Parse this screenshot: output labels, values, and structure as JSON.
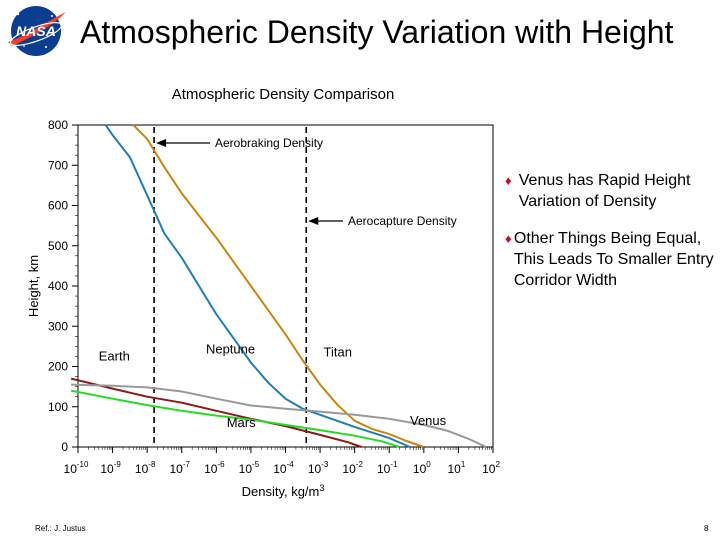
{
  "slide": {
    "title": "Atmospheric Density Variation with Height",
    "logo_text": "NASA",
    "footer_ref": "Ref.: J. Justus",
    "page_number": "8"
  },
  "bullets": [
    {
      "text": "Venus has Rapid Height Variation of Density"
    },
    {
      "text": "Other Things Being Equal, This Leads To Smaller Entry Corridor Width"
    }
  ],
  "colors": {
    "earth": "#8b1a1a",
    "mars": "#22dd22",
    "neptune": "#1f7fb5",
    "titan": "#c8870a",
    "venus": "#999999",
    "bullet": "#c8102e",
    "logo_blue": "#0b3d91",
    "logo_red": "#fc3d21"
  },
  "chart_data": {
    "type": "line",
    "title": "Atmospheric Density Comparison",
    "xlabel_base": "Density, kg/m",
    "xlabel_exp": "3",
    "ylabel": "Height, km",
    "xscale": "log",
    "x_exp_range": [
      -10,
      2
    ],
    "ylim": [
      0,
      800
    ],
    "x_tick_exponents": [
      -10,
      -9,
      -8,
      -7,
      -6,
      -5,
      -4,
      -3,
      -2,
      -1,
      0,
      1,
      2
    ],
    "y_ticks": [
      0,
      100,
      200,
      300,
      400,
      500,
      600,
      700,
      800
    ],
    "reference_lines": [
      {
        "name": "Aerobraking Density",
        "x_exp": -7.8
      },
      {
        "name": "Aerocapture Density",
        "x_exp": -3.4
      }
    ],
    "series": [
      {
        "name": "Earth",
        "label_pos": [
          -9.4,
          215
        ],
        "points": [
          [
            -10.2,
            170
          ],
          [
            -9,
            145
          ],
          [
            -8,
            125
          ],
          [
            -7,
            110
          ],
          [
            -6,
            90
          ],
          [
            -5,
            70
          ],
          [
            -4,
            52
          ],
          [
            -3,
            30
          ],
          [
            -2.2,
            12
          ],
          [
            -1.8,
            0
          ]
        ]
      },
      {
        "name": "Mars",
        "label_pos": [
          -5.7,
          50
        ],
        "points": [
          [
            -10.2,
            140
          ],
          [
            -9,
            120
          ],
          [
            -8,
            104
          ],
          [
            -7,
            90
          ],
          [
            -6,
            78
          ],
          [
            -5,
            68
          ],
          [
            -4,
            55
          ],
          [
            -3,
            42
          ],
          [
            -2,
            28
          ],
          [
            -1.2,
            14
          ],
          [
            -0.7,
            0
          ]
        ]
      },
      {
        "name": "Neptune",
        "label_pos": [
          -6.3,
          232
        ],
        "points": [
          [
            -9.2,
            800
          ],
          [
            -9,
            775
          ],
          [
            -8.5,
            720
          ],
          [
            -8,
            625
          ],
          [
            -7.5,
            530
          ],
          [
            -7,
            470
          ],
          [
            -6.5,
            400
          ],
          [
            -6,
            330
          ],
          [
            -5.5,
            270
          ],
          [
            -5,
            210
          ],
          [
            -4.5,
            160
          ],
          [
            -4,
            120
          ],
          [
            -3.5,
            95
          ],
          [
            -3,
            80
          ],
          [
            -2,
            50
          ],
          [
            -1,
            22
          ],
          [
            -0.4,
            0
          ]
        ]
      },
      {
        "name": "Titan",
        "label_pos": [
          -2.9,
          225
        ],
        "points": [
          [
            -8.4,
            800
          ],
          [
            -8,
            765
          ],
          [
            -7.5,
            695
          ],
          [
            -7,
            630
          ],
          [
            -6.5,
            575
          ],
          [
            -6,
            520
          ],
          [
            -5.5,
            460
          ],
          [
            -5,
            400
          ],
          [
            -4.5,
            340
          ],
          [
            -4,
            280
          ],
          [
            -3.5,
            215
          ],
          [
            -3,
            155
          ],
          [
            -2.5,
            105
          ],
          [
            -2,
            65
          ],
          [
            -1.5,
            45
          ],
          [
            -1,
            32
          ],
          [
            -0.5,
            15
          ],
          [
            0,
            0
          ]
        ]
      },
      {
        "name": "Venus",
        "label_pos": [
          -0.4,
          55
        ],
        "points": [
          [
            -10.2,
            155
          ],
          [
            -9,
            152
          ],
          [
            -8,
            148
          ],
          [
            -7,
            138
          ],
          [
            -6,
            120
          ],
          [
            -5,
            103
          ],
          [
            -4,
            95
          ],
          [
            -3,
            88
          ],
          [
            -2,
            80
          ],
          [
            -1,
            70
          ],
          [
            0,
            55
          ],
          [
            0.7,
            40
          ],
          [
            1.3,
            20
          ],
          [
            1.8,
            0
          ]
        ]
      }
    ]
  }
}
